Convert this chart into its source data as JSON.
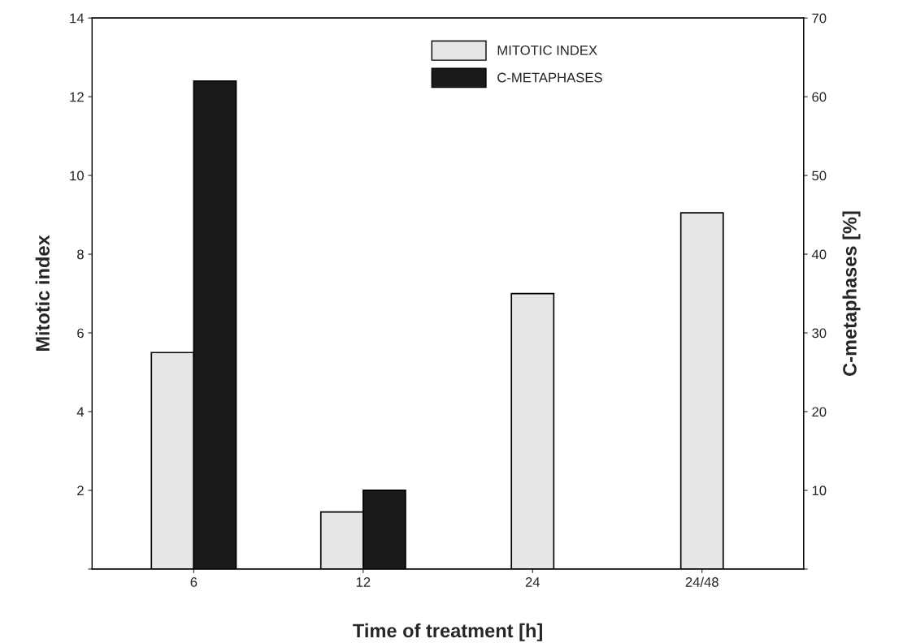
{
  "chart_data": {
    "type": "bar",
    "xlabel": "Time of treatment [h]",
    "ylabel": "Mitotic index",
    "y2label": "C-metaphases [%]",
    "categories": [
      "6",
      "12",
      "24",
      "24/48"
    ],
    "series": [
      {
        "name": "MITOTIC INDEX",
        "color": "#e6e6e6",
        "values": [
          5.5,
          1.45,
          7.0,
          9.05
        ]
      },
      {
        "name": "C-METAPHASES",
        "color": "#1a1a1a",
        "axis": "y2",
        "values": [
          62,
          10,
          null,
          null
        ]
      }
    ],
    "ylim": [
      0,
      14
    ],
    "yticks": [
      {
        "value": 0,
        "label": null
      },
      2,
      4,
      6,
      8,
      10,
      12,
      14
    ],
    "y2lim": [
      0,
      70
    ],
    "y2ticks": [
      {
        "value": 0,
        "label": null
      },
      10,
      20,
      30,
      40,
      50,
      60,
      70
    ],
    "legend": "top right",
    "grid": false
  }
}
